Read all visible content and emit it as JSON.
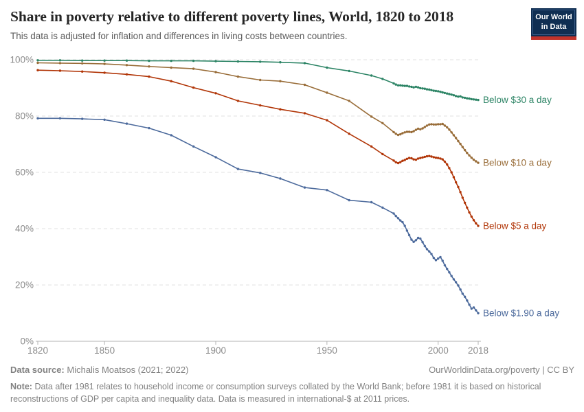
{
  "header": {
    "title": "Share in poverty relative to different poverty lines, World, 1820 to 2018",
    "subtitle": "This data is adjusted for inflation and differences in living costs between countries."
  },
  "logo": {
    "line1": "Our World",
    "line2": "in Data",
    "bg_color": "#0f2e52",
    "accent_color": "#c0332b"
  },
  "chart_data": {
    "type": "line",
    "title": "Share in poverty relative to different poverty lines, World, 1820 to 2018",
    "xlabel": "",
    "ylabel": "",
    "xlim": [
      1820,
      2018
    ],
    "ylim": [
      0,
      100
    ],
    "x_ticks": [
      1820,
      1850,
      1900,
      1950,
      2000,
      2018
    ],
    "y_ticks": [
      0,
      20,
      40,
      60,
      80,
      100
    ],
    "y_tick_suffix": "%",
    "grid": "horizontal-dashed",
    "legend_position": "right-of-line-ends",
    "grid_color": "#e0e0e0",
    "axis_color": "#b3b3b3",
    "tick_label_color": "#8b8b8b",
    "series": [
      {
        "name": "Below $30 a day",
        "color": "#2C8465",
        "points": [
          [
            1820,
            99.8
          ],
          [
            1830,
            99.8
          ],
          [
            1840,
            99.7
          ],
          [
            1850,
            99.7
          ],
          [
            1860,
            99.7
          ],
          [
            1870,
            99.6
          ],
          [
            1880,
            99.6
          ],
          [
            1890,
            99.6
          ],
          [
            1900,
            99.5
          ],
          [
            1910,
            99.4
          ],
          [
            1920,
            99.3
          ],
          [
            1929,
            99.1
          ],
          [
            1940,
            98.8
          ],
          [
            1950,
            97.2
          ],
          [
            1960,
            96.0
          ],
          [
            1970,
            94.4
          ],
          [
            1975,
            93.2
          ],
          [
            1980,
            91.6
          ],
          [
            1981,
            91.2
          ],
          [
            1982,
            90.9
          ],
          [
            1983,
            90.9
          ],
          [
            1984,
            90.8
          ],
          [
            1985,
            90.7
          ],
          [
            1986,
            90.7
          ],
          [
            1987,
            90.5
          ],
          [
            1988,
            90.4
          ],
          [
            1989,
            90.2
          ],
          [
            1990,
            90.4
          ],
          [
            1991,
            90.2
          ],
          [
            1992,
            89.9
          ],
          [
            1993,
            89.8
          ],
          [
            1994,
            89.7
          ],
          [
            1995,
            89.5
          ],
          [
            1996,
            89.4
          ],
          [
            1997,
            89.2
          ],
          [
            1998,
            89.0
          ],
          [
            1999,
            88.9
          ],
          [
            2000,
            88.8
          ],
          [
            2001,
            88.6
          ],
          [
            2002,
            88.4
          ],
          [
            2003,
            88.2
          ],
          [
            2004,
            88.0
          ],
          [
            2005,
            87.8
          ],
          [
            2006,
            87.6
          ],
          [
            2007,
            87.4
          ],
          [
            2008,
            87.1
          ],
          [
            2009,
            86.9
          ],
          [
            2010,
            87.0
          ],
          [
            2011,
            86.6
          ],
          [
            2012,
            86.5
          ],
          [
            2013,
            86.3
          ],
          [
            2014,
            86.2
          ],
          [
            2015,
            86.0
          ],
          [
            2016,
            85.9
          ],
          [
            2017,
            85.8
          ],
          [
            2018,
            85.7
          ]
        ]
      },
      {
        "name": "Below $10 a day",
        "color": "#996D39",
        "points": [
          [
            1820,
            98.9
          ],
          [
            1830,
            98.8
          ],
          [
            1840,
            98.7
          ],
          [
            1850,
            98.5
          ],
          [
            1860,
            98.1
          ],
          [
            1870,
            97.6
          ],
          [
            1880,
            97.2
          ],
          [
            1890,
            96.8
          ],
          [
            1900,
            95.6
          ],
          [
            1910,
            94.0
          ],
          [
            1920,
            92.8
          ],
          [
            1929,
            92.4
          ],
          [
            1940,
            91.1
          ],
          [
            1950,
            88.3
          ],
          [
            1960,
            85.4
          ],
          [
            1970,
            79.8
          ],
          [
            1975,
            77.5
          ],
          [
            1980,
            74.3
          ],
          [
            1981,
            73.7
          ],
          [
            1982,
            73.3
          ],
          [
            1983,
            73.5
          ],
          [
            1984,
            73.9
          ],
          [
            1985,
            74.2
          ],
          [
            1986,
            74.4
          ],
          [
            1987,
            74.4
          ],
          [
            1988,
            74.3
          ],
          [
            1989,
            74.6
          ],
          [
            1990,
            75.1
          ],
          [
            1991,
            75.5
          ],
          [
            1992,
            75.3
          ],
          [
            1993,
            75.6
          ],
          [
            1994,
            76.1
          ],
          [
            1995,
            76.6
          ],
          [
            1996,
            77.0
          ],
          [
            1997,
            77.1
          ],
          [
            1998,
            77.0
          ],
          [
            1999,
            77.0
          ],
          [
            2000,
            77.1
          ],
          [
            2001,
            77.1
          ],
          [
            2002,
            77.2
          ],
          [
            2003,
            76.6
          ],
          [
            2004,
            76.0
          ],
          [
            2005,
            75.2
          ],
          [
            2006,
            74.2
          ],
          [
            2007,
            73.2
          ],
          [
            2008,
            72.2
          ],
          [
            2009,
            71.1
          ],
          [
            2010,
            70.1
          ],
          [
            2011,
            69.0
          ],
          [
            2012,
            67.9
          ],
          [
            2013,
            66.9
          ],
          [
            2014,
            66.0
          ],
          [
            2015,
            65.2
          ],
          [
            2016,
            64.5
          ],
          [
            2017,
            63.9
          ],
          [
            2018,
            63.4
          ]
        ]
      },
      {
        "name": "Below $5 a day",
        "color": "#B13507",
        "points": [
          [
            1820,
            96.3
          ],
          [
            1830,
            96.1
          ],
          [
            1840,
            95.8
          ],
          [
            1850,
            95.4
          ],
          [
            1860,
            94.8
          ],
          [
            1870,
            94.0
          ],
          [
            1880,
            92.4
          ],
          [
            1890,
            90.1
          ],
          [
            1900,
            88.1
          ],
          [
            1910,
            85.4
          ],
          [
            1920,
            83.8
          ],
          [
            1929,
            82.4
          ],
          [
            1940,
            81.0
          ],
          [
            1950,
            78.5
          ],
          [
            1960,
            73.7
          ],
          [
            1970,
            69.2
          ],
          [
            1975,
            66.5
          ],
          [
            1980,
            64.2
          ],
          [
            1981,
            63.6
          ],
          [
            1982,
            63.3
          ],
          [
            1983,
            63.6
          ],
          [
            1984,
            64.1
          ],
          [
            1985,
            64.4
          ],
          [
            1986,
            64.8
          ],
          [
            1987,
            65.1
          ],
          [
            1988,
            65.0
          ],
          [
            1989,
            64.6
          ],
          [
            1990,
            64.5
          ],
          [
            1991,
            64.9
          ],
          [
            1992,
            65.1
          ],
          [
            1993,
            65.3
          ],
          [
            1994,
            65.5
          ],
          [
            1995,
            65.7
          ],
          [
            1996,
            65.8
          ],
          [
            1997,
            65.6
          ],
          [
            1998,
            65.4
          ],
          [
            1999,
            65.2
          ],
          [
            2000,
            65.1
          ],
          [
            2001,
            64.9
          ],
          [
            2002,
            64.6
          ],
          [
            2003,
            63.8
          ],
          [
            2004,
            62.8
          ],
          [
            2005,
            61.5
          ],
          [
            2006,
            60.0
          ],
          [
            2007,
            58.3
          ],
          [
            2008,
            56.5
          ],
          [
            2009,
            54.8
          ],
          [
            2010,
            53.0
          ],
          [
            2011,
            51.0
          ],
          [
            2012,
            49.2
          ],
          [
            2013,
            47.5
          ],
          [
            2014,
            45.8
          ],
          [
            2015,
            44.3
          ],
          [
            2016,
            43.0
          ],
          [
            2017,
            41.9
          ],
          [
            2018,
            41.0
          ]
        ]
      },
      {
        "name": "Below $1.90 a day",
        "color": "#4C6A9C",
        "points": [
          [
            1820,
            79.2
          ],
          [
            1830,
            79.2
          ],
          [
            1840,
            79.0
          ],
          [
            1850,
            78.7
          ],
          [
            1860,
            77.3
          ],
          [
            1870,
            75.7
          ],
          [
            1880,
            73.2
          ],
          [
            1890,
            69.2
          ],
          [
            1900,
            65.4
          ],
          [
            1910,
            61.2
          ],
          [
            1920,
            59.8
          ],
          [
            1929,
            57.8
          ],
          [
            1940,
            54.6
          ],
          [
            1950,
            53.7
          ],
          [
            1960,
            50.1
          ],
          [
            1970,
            49.4
          ],
          [
            1975,
            47.5
          ],
          [
            1980,
            45.4
          ],
          [
            1981,
            44.5
          ],
          [
            1982,
            43.7
          ],
          [
            1983,
            42.9
          ],
          [
            1984,
            42.3
          ],
          [
            1985,
            41.0
          ],
          [
            1986,
            39.3
          ],
          [
            1987,
            37.7
          ],
          [
            1988,
            36.1
          ],
          [
            1989,
            35.3
          ],
          [
            1990,
            35.9
          ],
          [
            1991,
            36.7
          ],
          [
            1992,
            36.5
          ],
          [
            1993,
            35.2
          ],
          [
            1994,
            33.8
          ],
          [
            1995,
            32.7
          ],
          [
            1996,
            31.9
          ],
          [
            1997,
            31.0
          ],
          [
            1998,
            29.6
          ],
          [
            1999,
            28.8
          ],
          [
            2000,
            29.4
          ],
          [
            2001,
            29.9
          ],
          [
            2002,
            28.6
          ],
          [
            2003,
            27.0
          ],
          [
            2004,
            25.7
          ],
          [
            2005,
            24.5
          ],
          [
            2006,
            23.2
          ],
          [
            2007,
            22.0
          ],
          [
            2008,
            21.0
          ],
          [
            2009,
            19.8
          ],
          [
            2010,
            18.4
          ],
          [
            2011,
            16.9
          ],
          [
            2012,
            15.8
          ],
          [
            2013,
            14.5
          ],
          [
            2014,
            13.0
          ],
          [
            2015,
            11.6
          ],
          [
            2016,
            12.0
          ],
          [
            2017,
            11.0
          ],
          [
            2018,
            10.0
          ]
        ]
      }
    ]
  },
  "footer": {
    "source_label": "Data source:",
    "source_text": "Michalis Moatsos (2021; 2022)",
    "attribution": "OurWorldinData.org/poverty | CC BY",
    "note_label": "Note:",
    "note_text": "Data after 1981 relates to household income or consumption surveys collated by the World Bank; before 1981 it is based on historical reconstructions of GDP per capita and inequality data. Data is measured in international-$ at 2011 prices."
  }
}
